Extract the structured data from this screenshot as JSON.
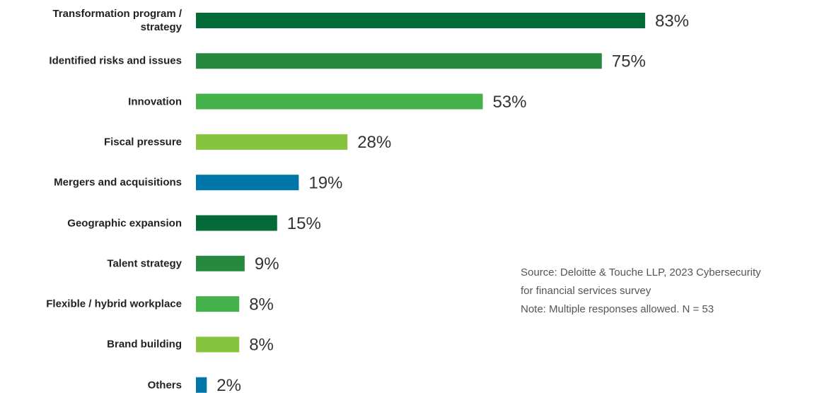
{
  "chart_data": {
    "type": "hbar",
    "categories": [
      "Transformation program / strategy",
      "Identified risks and issues",
      "Innovation",
      "Fiscal pressure",
      "Mergers and acquisitions",
      "Geographic expansion",
      "Talent strategy",
      "Flexible / hybrid workplace",
      "Brand building",
      "Others"
    ],
    "values": [
      83,
      75,
      53,
      28,
      19,
      15,
      9,
      8,
      8,
      2
    ],
    "value_labels": [
      "83%",
      "75%",
      "53%",
      "28%",
      "19%",
      "15%",
      "9%",
      "8%",
      "8%",
      "2%"
    ],
    "colors": [
      "#046a38",
      "#26893f",
      "#44b14b",
      "#86c440",
      "#0076a8",
      "#046a38",
      "#26893f",
      "#44b14b",
      "#86c440",
      "#0076a8"
    ],
    "notes": [
      "Source: Deloitte & Touche LLP, 2023 Cybersecurity",
      "for financial services survey",
      "Note: Multiple responses allowed. N = 53"
    ]
  }
}
